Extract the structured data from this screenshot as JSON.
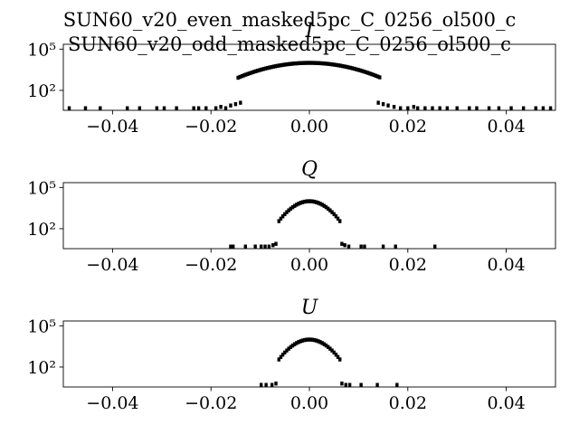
{
  "chart_data": {
    "type": "scatter",
    "title_lines": [
      "SUN60_v20_even_masked5pc_C_0256_ol500_c",
      "SUN60_v20_odd_masked5pc_C_0256_ol500_c"
    ],
    "panels": [
      {
        "title": "I",
        "yscale": "log",
        "xlim": [
          -0.05,
          0.05
        ],
        "ylim_log10": [
          0.55,
          5.35
        ],
        "x_ticks": [
          "−0.04",
          "−0.02",
          "0.00",
          "0.02",
          "0.04"
        ],
        "x_tick_values": [
          -0.04,
          -0.02,
          0.0,
          0.02,
          0.04
        ],
        "y_ticks": [
          "10⁵",
          "10²"
        ],
        "y_tick_log10": [
          5,
          2
        ],
        "peak_log10": 4.0,
        "core_sigma": 0.0065,
        "core_range": [
          -0.0145,
          0.0145
        ],
        "tails": [
          [
            -0.0488,
            0.7
          ],
          [
            -0.0455,
            0.7
          ],
          [
            -0.0425,
            0.7
          ],
          [
            -0.037,
            0.7
          ],
          [
            -0.0345,
            0.7
          ],
          [
            -0.031,
            0.7
          ],
          [
            -0.0295,
            0.7
          ],
          [
            -0.027,
            0.7
          ],
          [
            -0.0235,
            0.7
          ],
          [
            -0.0225,
            0.7
          ],
          [
            -0.021,
            0.7
          ],
          [
            -0.019,
            0.7
          ],
          [
            -0.018,
            0.8
          ],
          [
            -0.017,
            0.7
          ],
          [
            -0.016,
            0.9
          ],
          [
            -0.015,
            1.0
          ],
          [
            -0.014,
            1.1
          ],
          [
            0.014,
            1.1
          ],
          [
            0.015,
            1.0
          ],
          [
            0.016,
            0.9
          ],
          [
            0.0172,
            0.8
          ],
          [
            0.0185,
            0.7
          ],
          [
            0.02,
            0.7
          ],
          [
            0.0212,
            0.8
          ],
          [
            0.022,
            0.7
          ],
          [
            0.0235,
            0.7
          ],
          [
            0.025,
            0.7
          ],
          [
            0.0265,
            0.7
          ],
          [
            0.028,
            0.7
          ],
          [
            0.03,
            0.7
          ],
          [
            0.0325,
            0.7
          ],
          [
            0.034,
            0.7
          ],
          [
            0.0365,
            0.7
          ],
          [
            0.0385,
            0.7
          ],
          [
            0.041,
            0.7
          ],
          [
            0.0435,
            0.7
          ],
          [
            0.046,
            0.7
          ],
          [
            0.0475,
            0.7
          ],
          [
            0.049,
            0.7
          ]
        ]
      },
      {
        "title": "Q",
        "yscale": "log",
        "xlim": [
          -0.05,
          0.05
        ],
        "ylim_log10": [
          0.55,
          5.35
        ],
        "x_ticks": [
          "−0.04",
          "−0.02",
          "0.00",
          "0.02",
          "0.04"
        ],
        "x_tick_values": [
          -0.04,
          -0.02,
          0.0,
          0.02,
          0.04
        ],
        "y_ticks": [
          "10⁵",
          "10²"
        ],
        "y_tick_log10": [
          5,
          2
        ],
        "peak_log10": 4.0,
        "core_sigma": 0.0024,
        "core_range": [
          -0.0062,
          0.0062
        ],
        "tails": [
          [
            -0.016,
            0.7
          ],
          [
            -0.0155,
            0.7
          ],
          [
            -0.013,
            0.7
          ],
          [
            -0.011,
            0.7
          ],
          [
            -0.0098,
            0.7
          ],
          [
            -0.009,
            0.7
          ],
          [
            -0.0082,
            0.7
          ],
          [
            -0.0074,
            0.8
          ],
          [
            -0.0068,
            0.9
          ],
          [
            0.0066,
            0.9
          ],
          [
            0.0072,
            0.8
          ],
          [
            0.008,
            0.7
          ],
          [
            0.0105,
            0.7
          ],
          [
            0.0112,
            0.7
          ],
          [
            0.015,
            0.7
          ],
          [
            0.0175,
            0.7
          ],
          [
            0.0255,
            0.7
          ]
        ]
      },
      {
        "title": "U",
        "yscale": "log",
        "xlim": [
          -0.05,
          0.05
        ],
        "ylim_log10": [
          0.55,
          5.35
        ],
        "x_ticks": [
          "−0.04",
          "−0.02",
          "0.00",
          "0.02",
          "0.04"
        ],
        "x_tick_values": [
          -0.04,
          -0.02,
          0.0,
          0.02,
          0.04
        ],
        "y_ticks": [
          "10⁵",
          "10²"
        ],
        "y_tick_log10": [
          5,
          2
        ],
        "peak_log10": 4.0,
        "core_sigma": 0.0024,
        "core_range": [
          -0.0062,
          0.0062
        ],
        "tails": [
          [
            -0.0098,
            0.7
          ],
          [
            -0.0088,
            0.7
          ],
          [
            -0.0076,
            0.7
          ],
          [
            -0.0068,
            0.8
          ],
          [
            0.0066,
            0.8
          ],
          [
            0.0074,
            0.7
          ],
          [
            0.0082,
            0.7
          ],
          [
            0.0105,
            0.7
          ],
          [
            0.0138,
            0.7
          ],
          [
            0.0178,
            0.7
          ]
        ]
      }
    ]
  }
}
